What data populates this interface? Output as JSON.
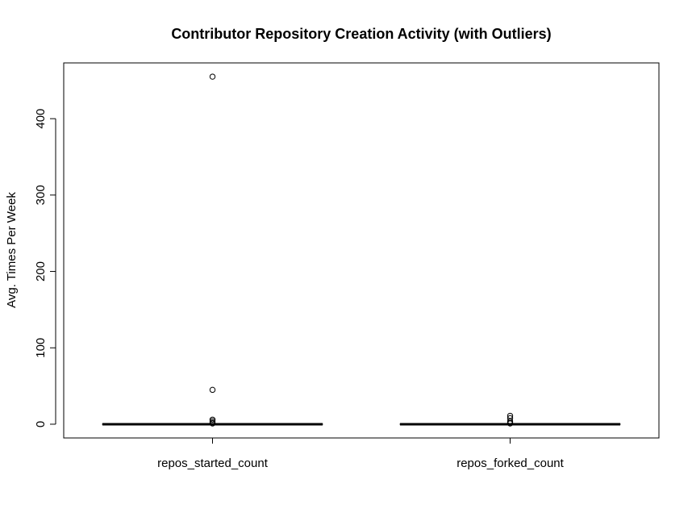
{
  "chart_data": {
    "type": "boxplot",
    "title": "Contributor Repository Creation Activity (with Outliers)",
    "xlabel": "",
    "ylabel": "Avg. Times Per Week",
    "categories": [
      "repos_started_count",
      "repos_forked_count"
    ],
    "yticks": [
      0,
      100,
      200,
      300,
      400
    ],
    "ylim": [
      -18,
      473
    ],
    "grid": false,
    "legend": "none",
    "boxes": [
      {
        "category": "repos_started_count",
        "min": 0,
        "q1": 0,
        "median": 0,
        "q3": 0,
        "max": 0,
        "outliers": [
          455,
          45,
          6,
          4,
          2,
          1
        ]
      },
      {
        "category": "repos_forked_count",
        "min": 0,
        "q1": 0,
        "median": 0,
        "q3": 0,
        "max": 0,
        "outliers": [
          11,
          8,
          4,
          2,
          1
        ]
      }
    ]
  }
}
